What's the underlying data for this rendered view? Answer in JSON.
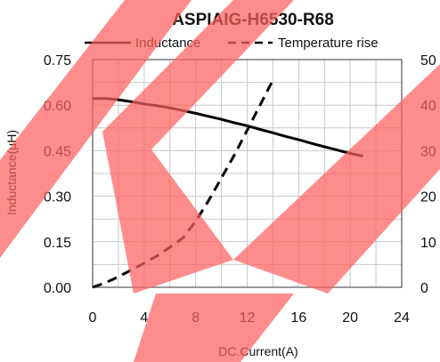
{
  "chart_data": {
    "type": "line",
    "title": "ASPIAIG-H6530-R68",
    "xlabel": "DC.Current(A)",
    "ylabel": "Inductance(μH)",
    "xlim": [
      0,
      24
    ],
    "ylim": [
      0,
      0.75
    ],
    "y2lim": [
      0,
      50
    ],
    "x_ticks": [
      "0",
      "4",
      "8",
      "12",
      "16",
      "20",
      "24"
    ],
    "y_ticks": [
      "0.00",
      "0.15",
      "0.30",
      "0.45",
      "0.60",
      "0.75"
    ],
    "y2_ticks": [
      "0",
      "10",
      "20",
      "30",
      "40",
      "50"
    ],
    "grid": true,
    "legend": "top",
    "series": [
      {
        "name": "Inductance",
        "axis": "left",
        "style": "solid",
        "x": [
          0,
          1,
          2,
          3,
          4,
          5,
          6,
          7,
          8,
          9,
          10,
          11,
          12,
          13,
          14,
          15,
          16,
          17,
          18,
          19,
          20,
          21
        ],
        "y": [
          0.622,
          0.622,
          0.618,
          0.611,
          0.604,
          0.598,
          0.591,
          0.582,
          0.573,
          0.563,
          0.553,
          0.542,
          0.532,
          0.52,
          0.509,
          0.497,
          0.486,
          0.474,
          0.463,
          0.452,
          0.441,
          0.432
        ]
      },
      {
        "name": "Temperature rise",
        "axis": "right",
        "style": "dashed",
        "x": [
          0,
          1,
          2,
          3,
          4,
          5,
          6,
          7,
          8,
          9,
          10,
          11,
          12,
          13,
          14
        ],
        "y": [
          0,
          1.0,
          2.3,
          3.8,
          5.3,
          6.9,
          8.8,
          10.8,
          14.5,
          19.0,
          24.0,
          29.0,
          34.5,
          40.0,
          45.5
        ]
      }
    ]
  },
  "colors": {
    "line": "#000000",
    "grid": "#c8c8c8",
    "axis": "#555555",
    "watermark": "#ff6060"
  }
}
